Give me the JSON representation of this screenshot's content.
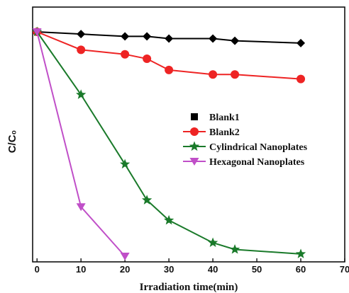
{
  "chart_data": {
    "type": "line",
    "xlabel": "Irradiation time(min)",
    "ylabel": "C/C₀",
    "xlim": [
      -1,
      70
    ],
    "ylim": [
      0,
      1.0
    ],
    "x_ticks": [
      "0",
      "10",
      "20",
      "30",
      "40",
      "50",
      "60",
      "70"
    ],
    "y_ticks_labeled": false,
    "legend_position": "center-right",
    "series": [
      {
        "name": "Blank1",
        "color": "#000000",
        "marker": "diamond",
        "legend_marker": "square",
        "x": [
          0,
          10,
          20,
          25,
          30,
          40,
          45,
          60
        ],
        "y": [
          1.0,
          0.99,
          0.98,
          0.98,
          0.97,
          0.97,
          0.96,
          0.95
        ]
      },
      {
        "name": "Blank2",
        "color": "#ee2424",
        "marker": "circle",
        "x": [
          0,
          10,
          20,
          25,
          30,
          40,
          45,
          60
        ],
        "y": [
          1.0,
          0.92,
          0.9,
          0.88,
          0.83,
          0.81,
          0.81,
          0.79
        ]
      },
      {
        "name": "Cylindrical Nanoplates",
        "color": "#1a7a2a",
        "marker": "star",
        "x": [
          0,
          10,
          20,
          25,
          30,
          40,
          45,
          60
        ],
        "y": [
          1.0,
          0.72,
          0.41,
          0.25,
          0.16,
          0.06,
          0.03,
          0.01
        ]
      },
      {
        "name": "Hexagonal Nanoplates",
        "color": "#c04fc8",
        "marker": "triangle-down",
        "x": [
          0,
          10,
          20
        ],
        "y": [
          1.0,
          0.22,
          0.0
        ]
      }
    ]
  }
}
